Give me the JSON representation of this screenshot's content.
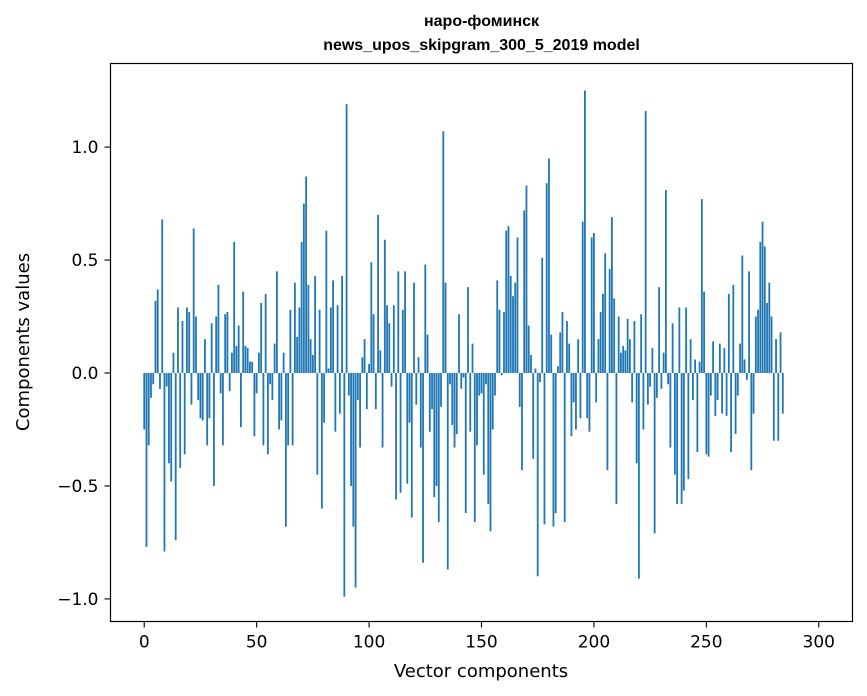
{
  "chart_data": {
    "type": "bar",
    "title": "наро-фоминск",
    "subtitle": "news_upos_skipgram_300_5_2019 model",
    "xlabel": "Vector components",
    "ylabel": "Components values",
    "xlim": [
      -15,
      315
    ],
    "ylim": [
      -1.1,
      1.37
    ],
    "xticks": [
      0,
      50,
      100,
      150,
      200,
      250,
      300
    ],
    "xtick_labels": [
      "0",
      "50",
      "100",
      "150",
      "200",
      "250",
      "300"
    ],
    "yticks": [
      -1.0,
      -0.5,
      0.0,
      0.5,
      1.0
    ],
    "ytick_labels": [
      "−1.0",
      "−0.5",
      "0.0",
      "0.5",
      "1.0"
    ],
    "bar_color": "#1f77b4",
    "grid": false,
    "x_start": 0,
    "values": [
      -0.25,
      -0.77,
      -0.32,
      -0.11,
      -0.05,
      0.32,
      0.37,
      -0.07,
      0.68,
      -0.79,
      -0.06,
      -0.4,
      -0.48,
      0.09,
      -0.74,
      0.29,
      -0.42,
      0.23,
      -0.36,
      0.29,
      0.27,
      -0.14,
      0.64,
      0.25,
      -0.12,
      -0.2,
      -0.21,
      0.15,
      -0.32,
      -0.2,
      0.22,
      -0.5,
      0.25,
      0.39,
      -0.09,
      -0.32,
      0.26,
      0.27,
      -0.08,
      0.09,
      0.58,
      0.12,
      0.21,
      -0.24,
      0.36,
      0.12,
      0.11,
      0.05,
      0.05,
      -0.28,
      -0.09,
      0.09,
      0.31,
      -0.32,
      0.35,
      -0.36,
      -0.05,
      -0.12,
      0.13,
      0.45,
      -0.25,
      -0.21,
      0.09,
      -0.68,
      -0.32,
      0.28,
      -0.32,
      0.4,
      0.16,
      0.29,
      0.58,
      0.75,
      0.87,
      0.39,
      0.15,
      0.08,
      0.43,
      -0.45,
      0.28,
      -0.6,
      -0.22,
      0.63,
      0.02,
      0.29,
      0.41,
      -0.26,
      0.3,
      -0.18,
      0.43,
      -0.99,
      1.19,
      -0.1,
      -0.5,
      -0.68,
      -0.95,
      -0.12,
      -0.33,
      0.07,
      0.15,
      -0.16,
      0.04,
      0.49,
      0.26,
      -0.16,
      0.7,
      0.1,
      -0.33,
      0.59,
      0.3,
      0.22,
      -0.06,
      0.3,
      -0.56,
      0.45,
      -0.53,
      0.28,
      0.45,
      -0.49,
      -0.22,
      -0.64,
      0.4,
      -0.14,
      0.07,
      -0.33,
      -0.84,
      0.48,
      0.17,
      -0.26,
      -0.16,
      -0.55,
      -0.5,
      -0.66,
      -0.15,
      1.07,
      0.4,
      -0.87,
      -0.05,
      -0.23,
      -0.33,
      -0.27,
      0.26,
      -0.07,
      -0.02,
      -0.62,
      0.38,
      -0.26,
      0.13,
      -0.66,
      -0.32,
      -0.1,
      -0.09,
      -0.45,
      -0.05,
      -0.58,
      -0.7,
      -0.25,
      -0.1,
      0.41,
      0.28,
      -0.01,
      0.27,
      0.63,
      0.65,
      0.43,
      0.34,
      0.4,
      0.6,
      -0.15,
      -0.43,
      0.72,
      0.83,
      0.21,
      0.08,
      -0.38,
      0.02,
      -0.9,
      -0.04,
      0.51,
      -0.67,
      0.84,
      0.95,
      0.17,
      -0.68,
      -0.62,
      0.03,
      0.18,
      0.27,
      -0.66,
      0.23,
      0.13,
      -0.28,
      -0.13,
      -0.25,
      0.15,
      -0.2,
      0.67,
      1.25,
      -0.2,
      -0.26,
      0.6,
      0.62,
      -0.13,
      0.15,
      0.27,
      0.35,
      0.53,
      -0.43,
      0.46,
      0.69,
      0.33,
      -0.58,
      0.25,
      0.09,
      0.12,
      0.1,
      0.24,
      0.15,
      -0.13,
      0.23,
      -0.4,
      -0.91,
      0.26,
      -0.25,
      1.16,
      -0.14,
      -0.06,
      0.11,
      -0.71,
      -0.11,
      0.38,
      -0.07,
      0.09,
      0.81,
      -0.05,
      -0.33,
      0.22,
      -0.45,
      -0.58,
      0.29,
      -0.58,
      -0.52,
      0.29,
      -0.47,
      0.15,
      -0.12,
      0.06,
      -0.35,
      0.05,
      0.77,
      0.36,
      -0.36,
      -0.37,
      -0.1,
      0.14,
      -0.19,
      -0.12,
      0.13,
      -0.18,
      0.11,
      -0.19,
      0.35,
      -0.35,
      0.39,
      -0.27,
      -0.1,
      0.13,
      0.52,
      0.06,
      -0.03,
      0.45,
      -0.43,
      -0.18,
      0.25,
      0.28,
      0.58,
      0.67,
      0.56,
      0.31,
      0.4,
      0.25,
      -0.3,
      0.15,
      -0.3,
      0.18,
      -0.18
    ]
  }
}
